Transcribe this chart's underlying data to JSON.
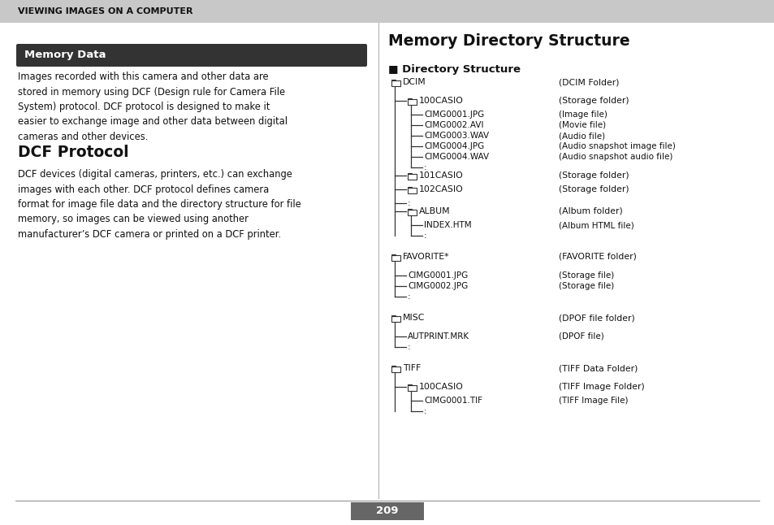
{
  "page_bg": "#ffffff",
  "header_bg": "#c8c8c8",
  "header_text": "VIEWING IMAGES ON A COMPUTER",
  "memory_data_bg": "#333333",
  "memory_data_text": "Memory Data",
  "memory_data_body": "Images recorded with this camera and other data are\nstored in memory using DCF (Design rule for Camera File\nSystem) protocol. DCF protocol is designed to make it\neasier to exchange image and other data between digital\ncameras and other devices.",
  "dcf_title": "DCF Protocol",
  "dcf_body": "DCF devices (digital cameras, printers, etc.) can exchange\nimages with each other. DCF protocol defines camera\nformat for image file data and the directory structure for file\nmemory, so images can be viewed using another\nmanufacturer’s DCF camera or printed on a DCF printer.",
  "right_title": "Memory Directory Structure",
  "dir_structure_title": "■ Directory Structure",
  "page_number": "209",
  "page_num_bg": "#666666"
}
